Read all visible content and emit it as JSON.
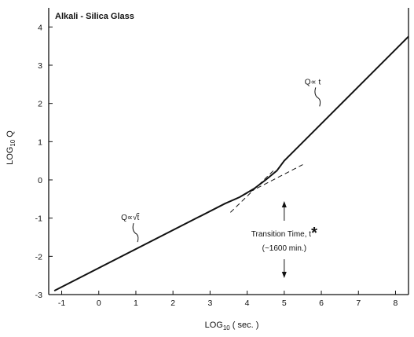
{
  "chart_data": {
    "type": "line",
    "title": "Alkali - Silica Glass",
    "xlabel": "LOG10 ( sec. )",
    "ylabel": "LOG10 Q",
    "xlim": [
      -1.35,
      8.35
    ],
    "ylim": [
      -3,
      4.5
    ],
    "xticks": [
      -1,
      0,
      1,
      2,
      3,
      4,
      5,
      6,
      7,
      8
    ],
    "yticks": [
      -3,
      -2,
      -1,
      0,
      1,
      2,
      3,
      4
    ],
    "grid": false,
    "series": [
      {
        "values_x": [
          -1.2,
          3.4,
          3.8,
          4.2,
          4.5,
          4.8,
          5.0,
          8.35
        ],
        "values_y": [
          -2.9,
          -0.62,
          -0.45,
          -0.22,
          0.0,
          0.24,
          0.5,
          3.75
        ]
      }
    ],
    "asymptotes": [
      {
        "label": "Q∝√t",
        "x": [
          3.7,
          5.5
        ],
        "y": [
          -0.5,
          0.4
        ]
      },
      {
        "label": "Q∝ t",
        "x": [
          3.55,
          4.75
        ],
        "y": [
          -0.85,
          0.28
        ]
      }
    ],
    "annotations": {
      "sqrt_label": {
        "text": "Q∝√",
        "radicand": "t",
        "x": 0.6,
        "y": -1.05
      },
      "linear_label": {
        "text": "Q∝  t",
        "x": 5.55,
        "y": 2.5
      },
      "transition_line1": "Transition Time,  t",
      "transition_star": "*",
      "transition_line2": "(~1600 min.)",
      "transition_x": 5.0
    }
  }
}
